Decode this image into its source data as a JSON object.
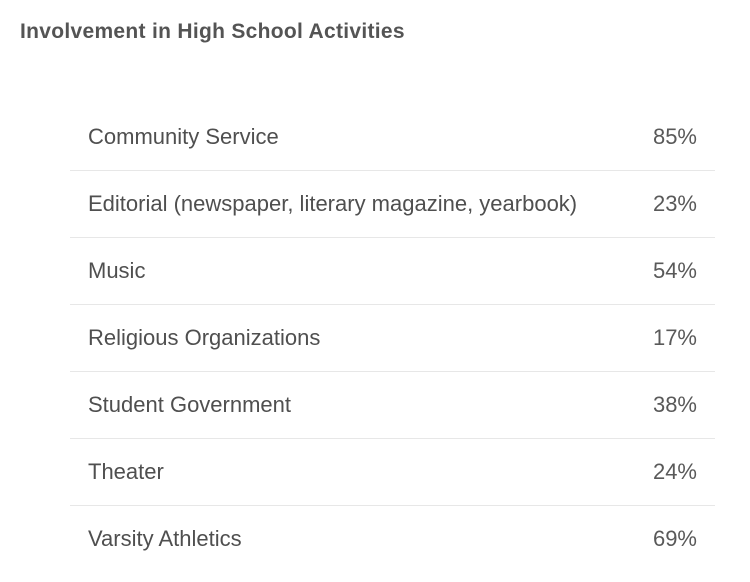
{
  "title": "Involvement in High School Activities",
  "rows": [
    {
      "label": "Community Service",
      "value": "85%"
    },
    {
      "label": "Editorial (newspaper, literary magazine, yearbook)",
      "value": "23%"
    },
    {
      "label": "Music",
      "value": "54%"
    },
    {
      "label": "Religious Organizations",
      "value": "17%"
    },
    {
      "label": "Student Government",
      "value": "38%"
    },
    {
      "label": "Theater",
      "value": "24%"
    },
    {
      "label": "Varsity Athletics",
      "value": "69%"
    }
  ],
  "styling": {
    "type": "table",
    "background_color": "#ffffff",
    "title_color": "#545454",
    "title_fontsize": 21,
    "title_fontweight": "bold",
    "label_color": "#4f4f4f",
    "value_color": "#595959",
    "row_fontsize": 22,
    "border_color": "#e7e7e7",
    "font_family": "Helvetica Neue, Helvetica, Arial, sans-serif"
  }
}
